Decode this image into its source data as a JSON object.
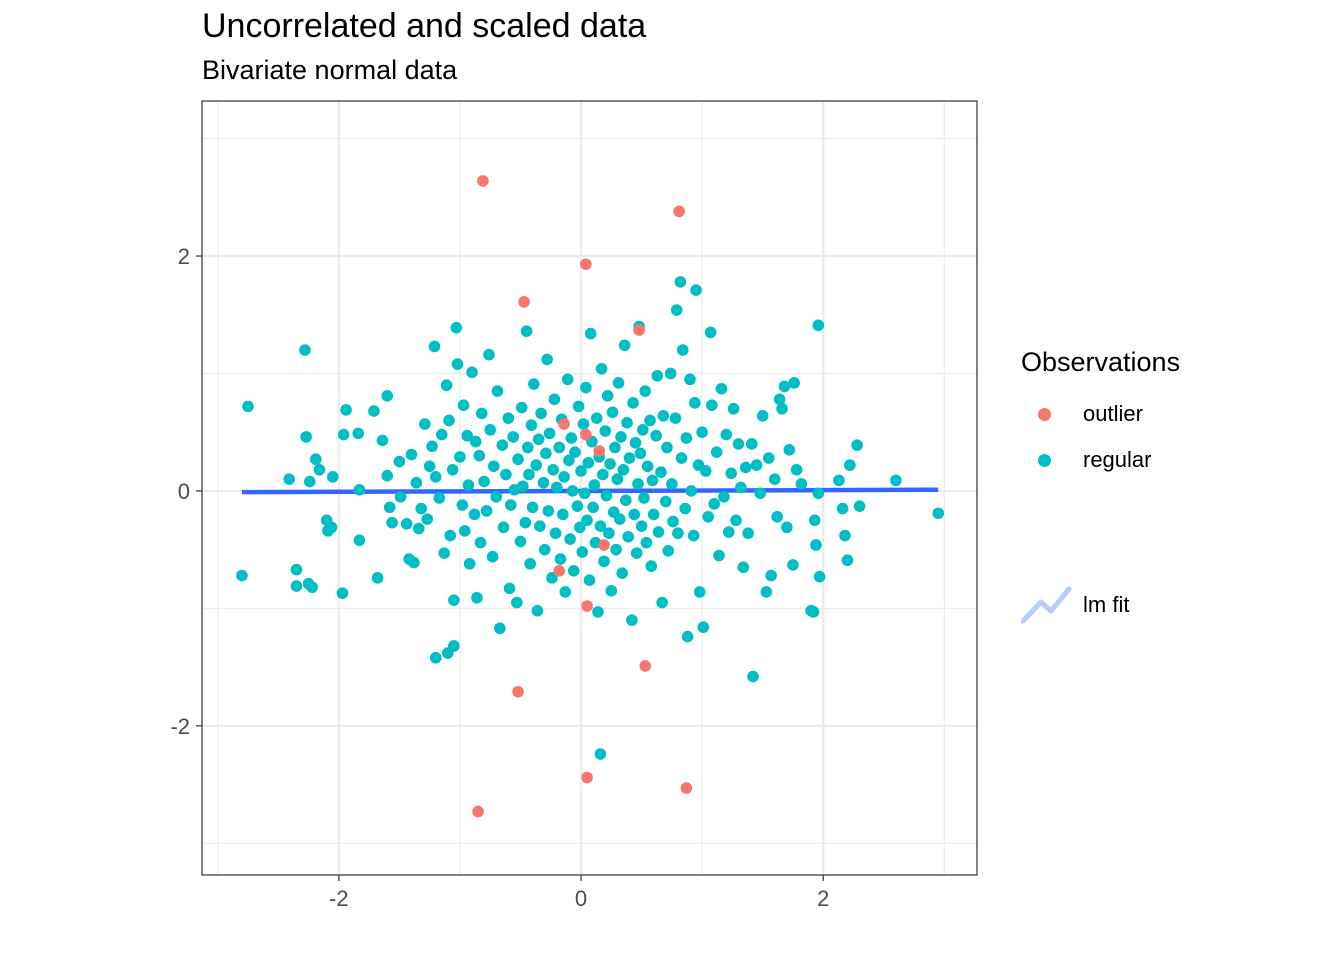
{
  "chart_data": {
    "type": "scatter",
    "title": "Uncorrelated and scaled data",
    "subtitle": "Bivariate normal data",
    "xlabel": "",
    "ylabel": "",
    "xlim": [
      -3.13,
      3.27
    ],
    "ylim": [
      -3.27,
      3.32
    ],
    "x_ticks": [
      -2,
      0,
      2
    ],
    "y_ticks": [
      -2,
      0,
      2
    ],
    "x_tick_labels": [
      "-2",
      "0",
      "2"
    ],
    "y_tick_labels": [
      "-2",
      "0",
      "2"
    ],
    "grid": true,
    "legend_position": "right",
    "legend": {
      "title": "Observations",
      "items": [
        {
          "label": "outlier",
          "color": "#F8766D"
        },
        {
          "label": "regular",
          "color": "#00BFC4"
        }
      ],
      "fit_label": "lm fit"
    },
    "fit_line": {
      "color": "#3366FF",
      "x": [
        -2.8,
        2.95
      ],
      "y": [
        -0.01,
        0.01
      ]
    },
    "series": [
      {
        "name": "outlier",
        "color": "#F8766D",
        "points": [
          [
            -0.81,
            2.64
          ],
          [
            0.81,
            2.38
          ],
          [
            0.04,
            1.93
          ],
          [
            -0.47,
            1.61
          ],
          [
            0.48,
            1.37
          ],
          [
            -0.14,
            0.57
          ],
          [
            0.04,
            0.48
          ],
          [
            0.15,
            0.34
          ],
          [
            0.19,
            -0.46
          ],
          [
            -0.18,
            -0.68
          ],
          [
            0.05,
            -0.98
          ],
          [
            0.53,
            -1.49
          ],
          [
            -0.52,
            -1.71
          ],
          [
            0.05,
            -2.44
          ],
          [
            0.87,
            -2.53
          ],
          [
            -0.85,
            -2.73
          ]
        ]
      },
      {
        "name": "regular",
        "color": "#00BFC4",
        "points": [
          [
            -2.75,
            0.72
          ],
          [
            -2.8,
            -0.72
          ],
          [
            -2.28,
            1.2
          ],
          [
            -2.35,
            -0.67
          ],
          [
            -2.35,
            -0.81
          ],
          [
            -2.25,
            -0.79
          ],
          [
            -2.22,
            -0.82
          ],
          [
            -2.27,
            0.46
          ],
          [
            -2.41,
            0.1
          ],
          [
            -2.19,
            0.27
          ],
          [
            -2.24,
            0.08
          ],
          [
            -2.16,
            0.18
          ],
          [
            -2.05,
            0.12
          ],
          [
            -2.1,
            -0.25
          ],
          [
            -2.06,
            -0.31
          ],
          [
            -2.09,
            -0.34
          ],
          [
            -1.97,
            -0.87
          ],
          [
            -1.94,
            0.69
          ],
          [
            -1.96,
            0.48
          ],
          [
            -1.84,
            0.49
          ],
          [
            -1.83,
            0.01
          ],
          [
            -1.83,
            -0.42
          ],
          [
            -1.71,
            0.68
          ],
          [
            -1.68,
            -0.74
          ],
          [
            -1.64,
            0.43
          ],
          [
            -1.6,
            0.13
          ],
          [
            -1.6,
            0.81
          ],
          [
            -1.58,
            -0.14
          ],
          [
            -1.56,
            -0.27
          ],
          [
            -1.5,
            0.25
          ],
          [
            -1.49,
            -0.05
          ],
          [
            -1.44,
            -0.28
          ],
          [
            -1.42,
            -0.58
          ],
          [
            -1.4,
            0.31
          ],
          [
            -1.38,
            -0.61
          ],
          [
            -1.36,
            0.07
          ],
          [
            -1.34,
            -0.32
          ],
          [
            -1.32,
            -0.15
          ],
          [
            -1.29,
            0.57
          ],
          [
            -1.27,
            -0.24
          ],
          [
            -1.25,
            0.21
          ],
          [
            -1.23,
            0.38
          ],
          [
            -1.21,
            1.23
          ],
          [
            -1.2,
            0.12
          ],
          [
            -1.17,
            -0.06
          ],
          [
            -1.15,
            0.48
          ],
          [
            -1.13,
            -0.53
          ],
          [
            -1.11,
            0.9
          ],
          [
            -1.09,
            0.6
          ],
          [
            -1.08,
            -0.38
          ],
          [
            -1.06,
            0.18
          ],
          [
            -1.05,
            -0.93
          ],
          [
            -1.03,
            1.39
          ],
          [
            -1.02,
            1.08
          ],
          [
            -1.0,
            0.29
          ],
          [
            -0.98,
            -0.12
          ],
          [
            -0.97,
            0.73
          ],
          [
            -0.96,
            -0.34
          ],
          [
            -0.94,
            0.47
          ],
          [
            -0.93,
            0.05
          ],
          [
            -0.92,
            -0.62
          ],
          [
            -0.9,
            1.01
          ],
          [
            -0.88,
            -0.2
          ],
          [
            -0.87,
            0.42
          ],
          [
            -0.86,
            -0.91
          ],
          [
            -0.84,
            0.3
          ],
          [
            -0.83,
            -0.44
          ],
          [
            -0.82,
            0.66
          ],
          [
            -0.8,
            0.08
          ],
          [
            -0.78,
            -0.17
          ],
          [
            -0.76,
            1.16
          ],
          [
            -0.75,
            0.52
          ],
          [
            -0.73,
            -0.56
          ],
          [
            -0.72,
            0.21
          ],
          [
            -0.7,
            -0.05
          ],
          [
            -0.69,
            0.85
          ],
          [
            -0.67,
            -1.17
          ],
          [
            -0.65,
            0.39
          ],
          [
            -0.64,
            -0.31
          ],
          [
            -0.62,
            0.14
          ],
          [
            -0.6,
            0.62
          ],
          [
            -0.59,
            -0.83
          ],
          [
            -0.58,
            -0.12
          ],
          [
            -0.56,
            0.46
          ],
          [
            -0.55,
            0.01
          ],
          [
            -0.53,
            -0.95
          ],
          [
            -0.52,
            0.27
          ],
          [
            -0.5,
            -0.43
          ],
          [
            -0.49,
            0.71
          ],
          [
            -0.48,
            0.04
          ],
          [
            -0.46,
            -0.27
          ],
          [
            -0.45,
            1.36
          ],
          [
            -0.44,
            0.37
          ],
          [
            -0.43,
            0.14
          ],
          [
            -0.42,
            -0.62
          ],
          [
            -0.41,
            0.56
          ],
          [
            -0.4,
            -0.14
          ],
          [
            -0.39,
            0.91
          ],
          [
            -0.37,
            0.22
          ],
          [
            -0.36,
            -1.02
          ],
          [
            -0.35,
            0.44
          ],
          [
            -0.34,
            -0.3
          ],
          [
            -0.33,
            0.66
          ],
          [
            -0.31,
            0.07
          ],
          [
            -0.3,
            -0.5
          ],
          [
            -0.29,
            0.32
          ],
          [
            -0.28,
            1.12
          ],
          [
            -0.27,
            -0.17
          ],
          [
            -0.26,
            0.49
          ],
          [
            -0.24,
            -0.74
          ],
          [
            -0.23,
            0.18
          ],
          [
            -0.22,
            0.78
          ],
          [
            -0.21,
            -0.36
          ],
          [
            -0.2,
            0.03
          ],
          [
            -0.18,
            0.37
          ],
          [
            -0.17,
            -0.58
          ],
          [
            -0.16,
            0.61
          ],
          [
            -0.15,
            -0.2
          ],
          [
            -0.14,
            0.12
          ],
          [
            -0.13,
            -0.86
          ],
          [
            -0.11,
            0.95
          ],
          [
            -0.1,
            0.26
          ],
          [
            -0.09,
            -0.41
          ],
          [
            -0.08,
            0.45
          ],
          [
            -0.07,
            0.0
          ],
          [
            -0.06,
            -0.68
          ],
          [
            -0.05,
            0.33
          ],
          [
            -0.03,
            -0.13
          ],
          [
            -0.02,
            0.72
          ],
          [
            -0.01,
            -0.31
          ],
          [
            0.0,
            0.17
          ],
          [
            0.01,
            -0.52
          ],
          [
            0.02,
            0.57
          ],
          [
            0.03,
            -0.02
          ],
          [
            0.04,
            0.88
          ],
          [
            0.05,
            -0.25
          ],
          [
            0.06,
            0.24
          ],
          [
            0.07,
            -0.76
          ],
          [
            0.08,
            1.34
          ],
          [
            0.09,
            0.42
          ],
          [
            0.1,
            -0.14
          ],
          [
            0.11,
            0.05
          ],
          [
            0.12,
            -0.44
          ],
          [
            0.13,
            0.62
          ],
          [
            0.14,
            -1.03
          ],
          [
            0.15,
            0.29
          ],
          [
            0.16,
            -0.3
          ],
          [
            0.17,
            1.04
          ],
          [
            0.18,
            0.14
          ],
          [
            0.19,
            -0.6
          ],
          [
            0.2,
            0.51
          ],
          [
            0.21,
            -0.04
          ],
          [
            0.22,
            0.81
          ],
          [
            0.23,
            -0.36
          ],
          [
            0.24,
            0.23
          ],
          [
            0.25,
            -0.85
          ],
          [
            0.26,
            0.67
          ],
          [
            0.27,
            -0.18
          ],
          [
            0.28,
            0.37
          ],
          [
            0.29,
            -0.5
          ],
          [
            0.3,
            0.1
          ],
          [
            0.31,
            0.92
          ],
          [
            0.32,
            -0.24
          ],
          [
            0.33,
            0.46
          ],
          [
            0.34,
            -0.7
          ],
          [
            0.35,
            0.18
          ],
          [
            0.36,
            1.24
          ],
          [
            0.37,
            -0.08
          ],
          [
            0.38,
            0.58
          ],
          [
            0.39,
            -0.39
          ],
          [
            0.4,
            0.28
          ],
          [
            0.42,
            -1.1
          ],
          [
            0.43,
            0.75
          ],
          [
            0.44,
            -0.2
          ],
          [
            0.45,
            0.41
          ],
          [
            0.46,
            -0.53
          ],
          [
            0.47,
            0.06
          ],
          [
            0.48,
            1.4
          ],
          [
            0.49,
            0.32
          ],
          [
            0.5,
            -0.3
          ],
          [
            0.51,
            0.52
          ],
          [
            0.52,
            -0.06
          ],
          [
            0.53,
            0.85
          ],
          [
            0.54,
            -0.44
          ],
          [
            0.55,
            0.21
          ],
          [
            0.57,
            0.6
          ],
          [
            0.58,
            -0.64
          ],
          [
            0.59,
            0.09
          ],
          [
            0.6,
            -0.2
          ],
          [
            0.62,
            0.47
          ],
          [
            0.63,
            0.98
          ],
          [
            0.64,
            -0.35
          ],
          [
            0.66,
            0.16
          ],
          [
            0.67,
            -0.95
          ],
          [
            0.68,
            0.64
          ],
          [
            0.7,
            -0.09
          ],
          [
            0.71,
            0.37
          ],
          [
            0.72,
            -0.51
          ],
          [
            0.74,
            1.0
          ],
          [
            0.75,
            0.06
          ],
          [
            0.76,
            -0.26
          ],
          [
            0.78,
            0.62
          ],
          [
            0.79,
            1.54
          ],
          [
            0.8,
            -0.36
          ],
          [
            0.82,
            1.78
          ],
          [
            0.83,
            0.28
          ],
          [
            0.84,
            1.2
          ],
          [
            0.86,
            -0.15
          ],
          [
            0.87,
            0.45
          ],
          [
            0.88,
            -1.24
          ],
          [
            0.9,
            0.95
          ],
          [
            0.91,
            0.0
          ],
          [
            0.93,
            -0.38
          ],
          [
            0.94,
            0.75
          ],
          [
            0.95,
            1.71
          ],
          [
            0.97,
            0.22
          ],
          [
            0.98,
            -0.86
          ],
          [
            1.0,
            0.5
          ],
          [
            1.01,
            -1.16
          ],
          [
            1.03,
            0.17
          ],
          [
            1.05,
            -0.22
          ],
          [
            1.07,
            1.35
          ],
          [
            1.08,
            0.73
          ],
          [
            1.1,
            -0.11
          ],
          [
            1.12,
            0.33
          ],
          [
            1.14,
            -0.55
          ],
          [
            1.16,
            0.87
          ],
          [
            1.18,
            -0.05
          ],
          [
            1.2,
            0.48
          ],
          [
            1.22,
            -0.35
          ],
          [
            1.24,
            0.15
          ],
          [
            1.26,
            0.7
          ],
          [
            1.28,
            -0.25
          ],
          [
            1.3,
            0.4
          ],
          [
            1.32,
            0.03
          ],
          [
            1.34,
            -0.65
          ],
          [
            1.36,
            0.2
          ],
          [
            1.38,
            -0.36
          ],
          [
            1.41,
            0.4
          ],
          [
            1.42,
            -1.58
          ],
          [
            1.45,
            0.22
          ],
          [
            1.48,
            -0.02
          ],
          [
            1.5,
            0.64
          ],
          [
            1.53,
            -0.86
          ],
          [
            1.55,
            0.28
          ],
          [
            1.57,
            -0.72
          ],
          [
            1.6,
            0.1
          ],
          [
            1.62,
            -0.22
          ],
          [
            1.64,
            0.78
          ],
          [
            1.66,
            0.7
          ],
          [
            1.68,
            0.89
          ],
          [
            1.7,
            -0.31
          ],
          [
            1.72,
            0.35
          ],
          [
            1.75,
            -0.63
          ],
          [
            1.76,
            0.92
          ],
          [
            1.78,
            0.18
          ],
          [
            1.82,
            0.06
          ],
          [
            1.9,
            -1.02
          ],
          [
            1.92,
            -1.03
          ],
          [
            1.93,
            -0.25
          ],
          [
            1.94,
            -0.46
          ],
          [
            1.96,
            1.41
          ],
          [
            1.96,
            -0.02
          ],
          [
            1.97,
            -0.73
          ],
          [
            2.13,
            0.09
          ],
          [
            2.16,
            -0.15
          ],
          [
            2.18,
            -0.38
          ],
          [
            2.2,
            -0.59
          ],
          [
            2.22,
            0.22
          ],
          [
            2.28,
            0.39
          ],
          [
            2.3,
            -0.13
          ],
          [
            2.6,
            0.09
          ],
          [
            2.95,
            -0.19
          ],
          [
            0.16,
            -2.24
          ],
          [
            -1.2,
            -1.42
          ],
          [
            -1.1,
            -1.38
          ],
          [
            -1.05,
            -1.32
          ]
        ]
      }
    ]
  }
}
